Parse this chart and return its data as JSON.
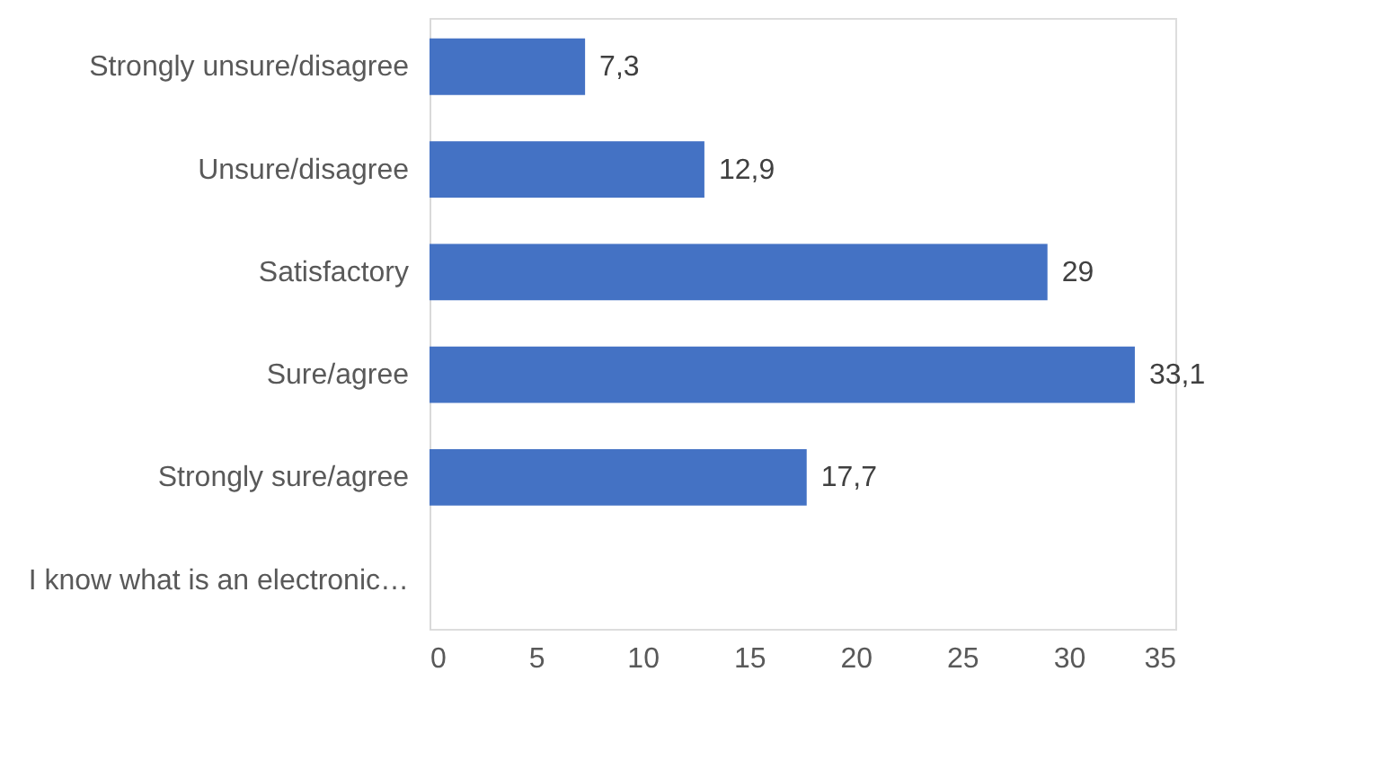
{
  "chart_data": {
    "type": "bar",
    "orientation": "horizontal",
    "categories": [
      "Strongly unsure/disagree",
      "Unsure/disagree",
      "Satisfactory",
      "Sure/agree",
      "Strongly sure/agree  ",
      "I know what is an electronic…"
    ],
    "values": [
      7.3,
      12.9,
      29,
      33.1,
      17.7,
      null
    ],
    "value_labels": [
      "7,3",
      "12,9",
      "29",
      "33,1",
      "17,7",
      null
    ],
    "color": "#4472c4",
    "xlim": [
      0,
      35
    ],
    "xticks": [
      0,
      5,
      10,
      15,
      20,
      25,
      30,
      35
    ],
    "grid": false
  }
}
